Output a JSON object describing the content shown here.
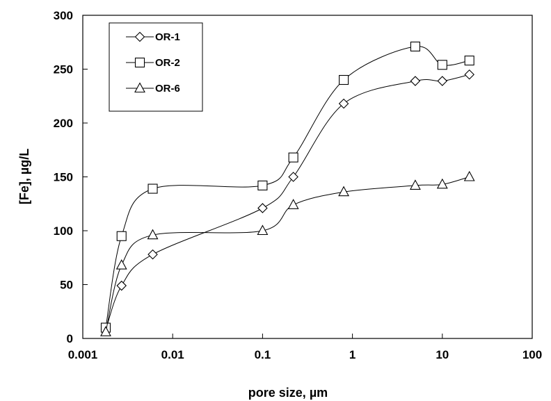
{
  "chart_data": {
    "type": "scatter",
    "xlabel": "pore size, µm",
    "ylabel": "[Fe], µg/L",
    "x_scale": "log",
    "xlim": [
      0.001,
      100
    ],
    "ylim": [
      0,
      300
    ],
    "x_ticks": [
      0.001,
      0.01,
      0.1,
      1,
      10,
      100
    ],
    "x_tick_labels": [
      "0.001",
      "0.01",
      "0.1",
      "1",
      "10",
      "100"
    ],
    "y_ticks": [
      0,
      50,
      100,
      150,
      200,
      250,
      300
    ],
    "y_tick_labels": [
      "0",
      "50",
      "100",
      "150",
      "200",
      "250",
      "300"
    ],
    "grid": false,
    "legend_position": "top-left",
    "line_style": "smooth",
    "series": [
      {
        "name": "OR-1",
        "marker": "diamond",
        "x": [
          0.0018,
          0.0027,
          0.006,
          0.1,
          0.22,
          0.8,
          5,
          10,
          20
        ],
        "y": [
          8,
          49,
          78,
          121,
          150,
          218,
          239,
          239,
          245
        ]
      },
      {
        "name": "OR-2",
        "marker": "square",
        "x": [
          0.0018,
          0.0027,
          0.006,
          0.1,
          0.22,
          0.8,
          5,
          10,
          20
        ],
        "y": [
          10,
          95,
          139,
          142,
          168,
          240,
          271,
          254,
          258
        ]
      },
      {
        "name": "OR-6",
        "marker": "triangle",
        "x": [
          0.0018,
          0.0027,
          0.006,
          0.1,
          0.22,
          0.8,
          5,
          10,
          20
        ],
        "y": [
          6,
          68,
          96,
          100,
          124,
          136,
          142,
          143,
          150
        ]
      }
    ]
  }
}
